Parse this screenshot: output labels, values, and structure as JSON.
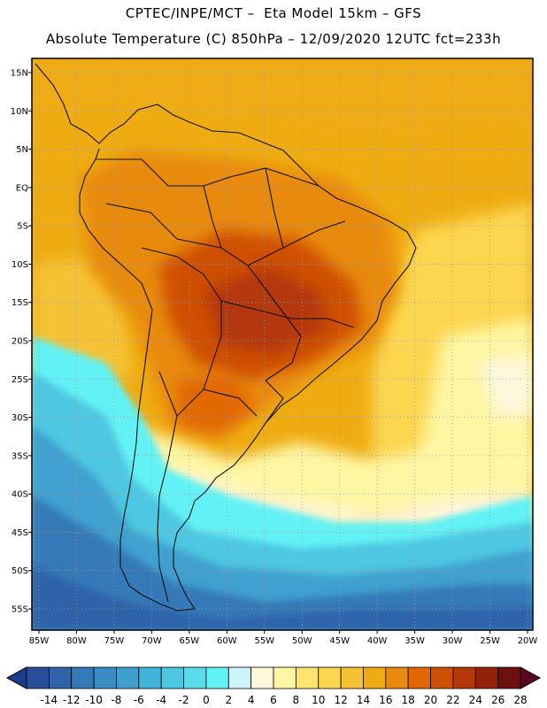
{
  "header": {
    "line1": "CPTEC/INPE/MCT –  Eta Model 15km – GFS",
    "line2": "Absolute Temperature (C) 850hPa – 12/09/2020 12UTC fct=233h"
  },
  "map": {
    "region": "South America",
    "lat_labels": [
      "15N",
      "10N",
      "5N",
      "EQ",
      "5S",
      "10S",
      "15S",
      "20S",
      "25S",
      "30S",
      "35S",
      "40S",
      "45S",
      "50S",
      "55S"
    ],
    "lon_labels": [
      "85W",
      "80W",
      "75W",
      "70W",
      "65W",
      "60W",
      "55W",
      "50W",
      "45W",
      "40W",
      "35W",
      "30W",
      "25W",
      "20W"
    ]
  },
  "colorbar": {
    "labels": [
      "-14",
      "-12",
      "-10",
      "-8",
      "-6",
      "-4",
      "-2",
      "0",
      "2",
      "4",
      "6",
      "8",
      "10",
      "12",
      "14",
      "16",
      "18",
      "20",
      "22",
      "24",
      "26",
      "28"
    ],
    "colors": [
      "#2a4d9a",
      "#2f64aa",
      "#3479b8",
      "#3a8dc4",
      "#3fa0cf",
      "#43b4d9",
      "#4ec7e2",
      "#5bdbec",
      "#62f2f5",
      "#cdf4fb",
      "#fff7dc",
      "#fff6a4",
      "#ffe472",
      "#fcd64f",
      "#f5c234",
      "#efac12",
      "#e88a10",
      "#e26806",
      "#cf4f04",
      "#b43808",
      "#942208",
      "#6e1010"
    ],
    "low_color": "#1e3c8a",
    "high_color": "#5a0820"
  }
}
